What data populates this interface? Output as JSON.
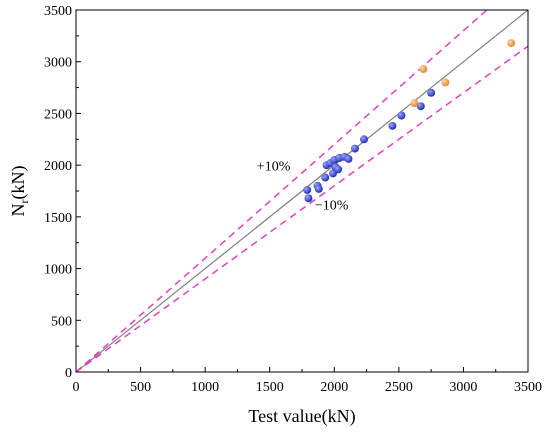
{
  "chart_data": {
    "type": "scatter",
    "title": "",
    "xlabel": "Test value(kN)",
    "ylabel_main": "N",
    "ylabel_sub": "r",
    "ylabel_rest": "(kN)",
    "xlim": [
      0,
      3500
    ],
    "ylim": [
      0,
      3500
    ],
    "x_ticks": [
      "0",
      "500",
      "1000",
      "1500",
      "2000",
      "2500",
      "3000",
      "3500"
    ],
    "y_ticks": [
      "0",
      "500",
      "1000",
      "1500",
      "2000",
      "2500",
      "3000",
      "3500"
    ],
    "grid": false,
    "legend": "none",
    "reference_lines": [
      {
        "id": "equality",
        "slope": 1.0,
        "color": "#808080",
        "style": "solid"
      },
      {
        "id": "upper-10",
        "slope": 1.1,
        "color": "#e040c0",
        "style": "dashed"
      },
      {
        "id": "lower-10",
        "slope": 0.9,
        "color": "#e040c0",
        "style": "dashed"
      }
    ],
    "annotations": [
      {
        "text": "+10%",
        "x": 1400,
        "y": 1950
      },
      {
        "text": "−10%",
        "x": 1850,
        "y": 1570
      }
    ],
    "series": [
      {
        "color": "#3a48c8",
        "points": [
          [
            1790,
            1760
          ],
          [
            1800,
            1680
          ],
          [
            1870,
            1800
          ],
          [
            1880,
            1770
          ],
          [
            1930,
            1880
          ],
          [
            1940,
            2000
          ],
          [
            1970,
            2020
          ],
          [
            1990,
            1920
          ],
          [
            2000,
            2050
          ],
          [
            2010,
            1980
          ],
          [
            2030,
            1960
          ],
          [
            2040,
            2070
          ],
          [
            2080,
            2080
          ],
          [
            2110,
            2060
          ],
          [
            2160,
            2160
          ],
          [
            2230,
            2250
          ],
          [
            2450,
            2380
          ],
          [
            2520,
            2480
          ],
          [
            2670,
            2570
          ],
          [
            2750,
            2700
          ]
        ]
      },
      {
        "color": "#f0a050",
        "points": [
          [
            2620,
            2600
          ],
          [
            2690,
            2930
          ],
          [
            2860,
            2800
          ],
          [
            3370,
            3180
          ]
        ]
      }
    ]
  }
}
